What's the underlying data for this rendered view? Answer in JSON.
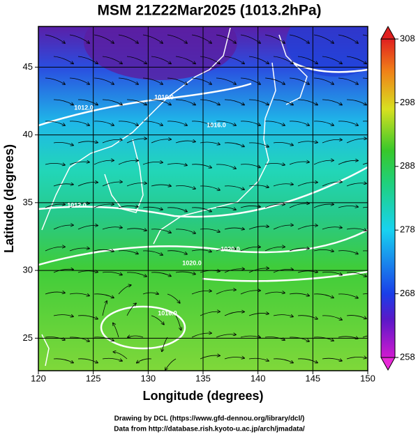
{
  "title": "MSM 21Z22Mar2025 (1013.2hPa)",
  "map": {
    "xlabel": "Longitude (degrees)",
    "ylabel": "Latitude  (degrees)",
    "xlim": [
      120,
      150
    ],
    "ylim": [
      22.6,
      48
    ],
    "xticks": [
      120,
      125,
      130,
      135,
      140,
      145,
      150
    ],
    "yticks": [
      25,
      30,
      35,
      40,
      45
    ],
    "grid": true,
    "contour_labels": [
      "1012.0",
      "1016.0",
      "1012.0",
      "1016.0",
      "1020.0",
      "1020.0",
      "1016.0"
    ]
  },
  "colorbar": {
    "lim": [
      258,
      308
    ],
    "ticks": [
      258,
      268,
      278,
      288,
      298,
      308
    ]
  },
  "credits": [
    "Drawing by DCL (https://www.gfd-dennou.org/library/dcl/)",
    "Data from http://database.rish.kyoto-u.ac.jp/arch/jmadata/"
  ]
}
